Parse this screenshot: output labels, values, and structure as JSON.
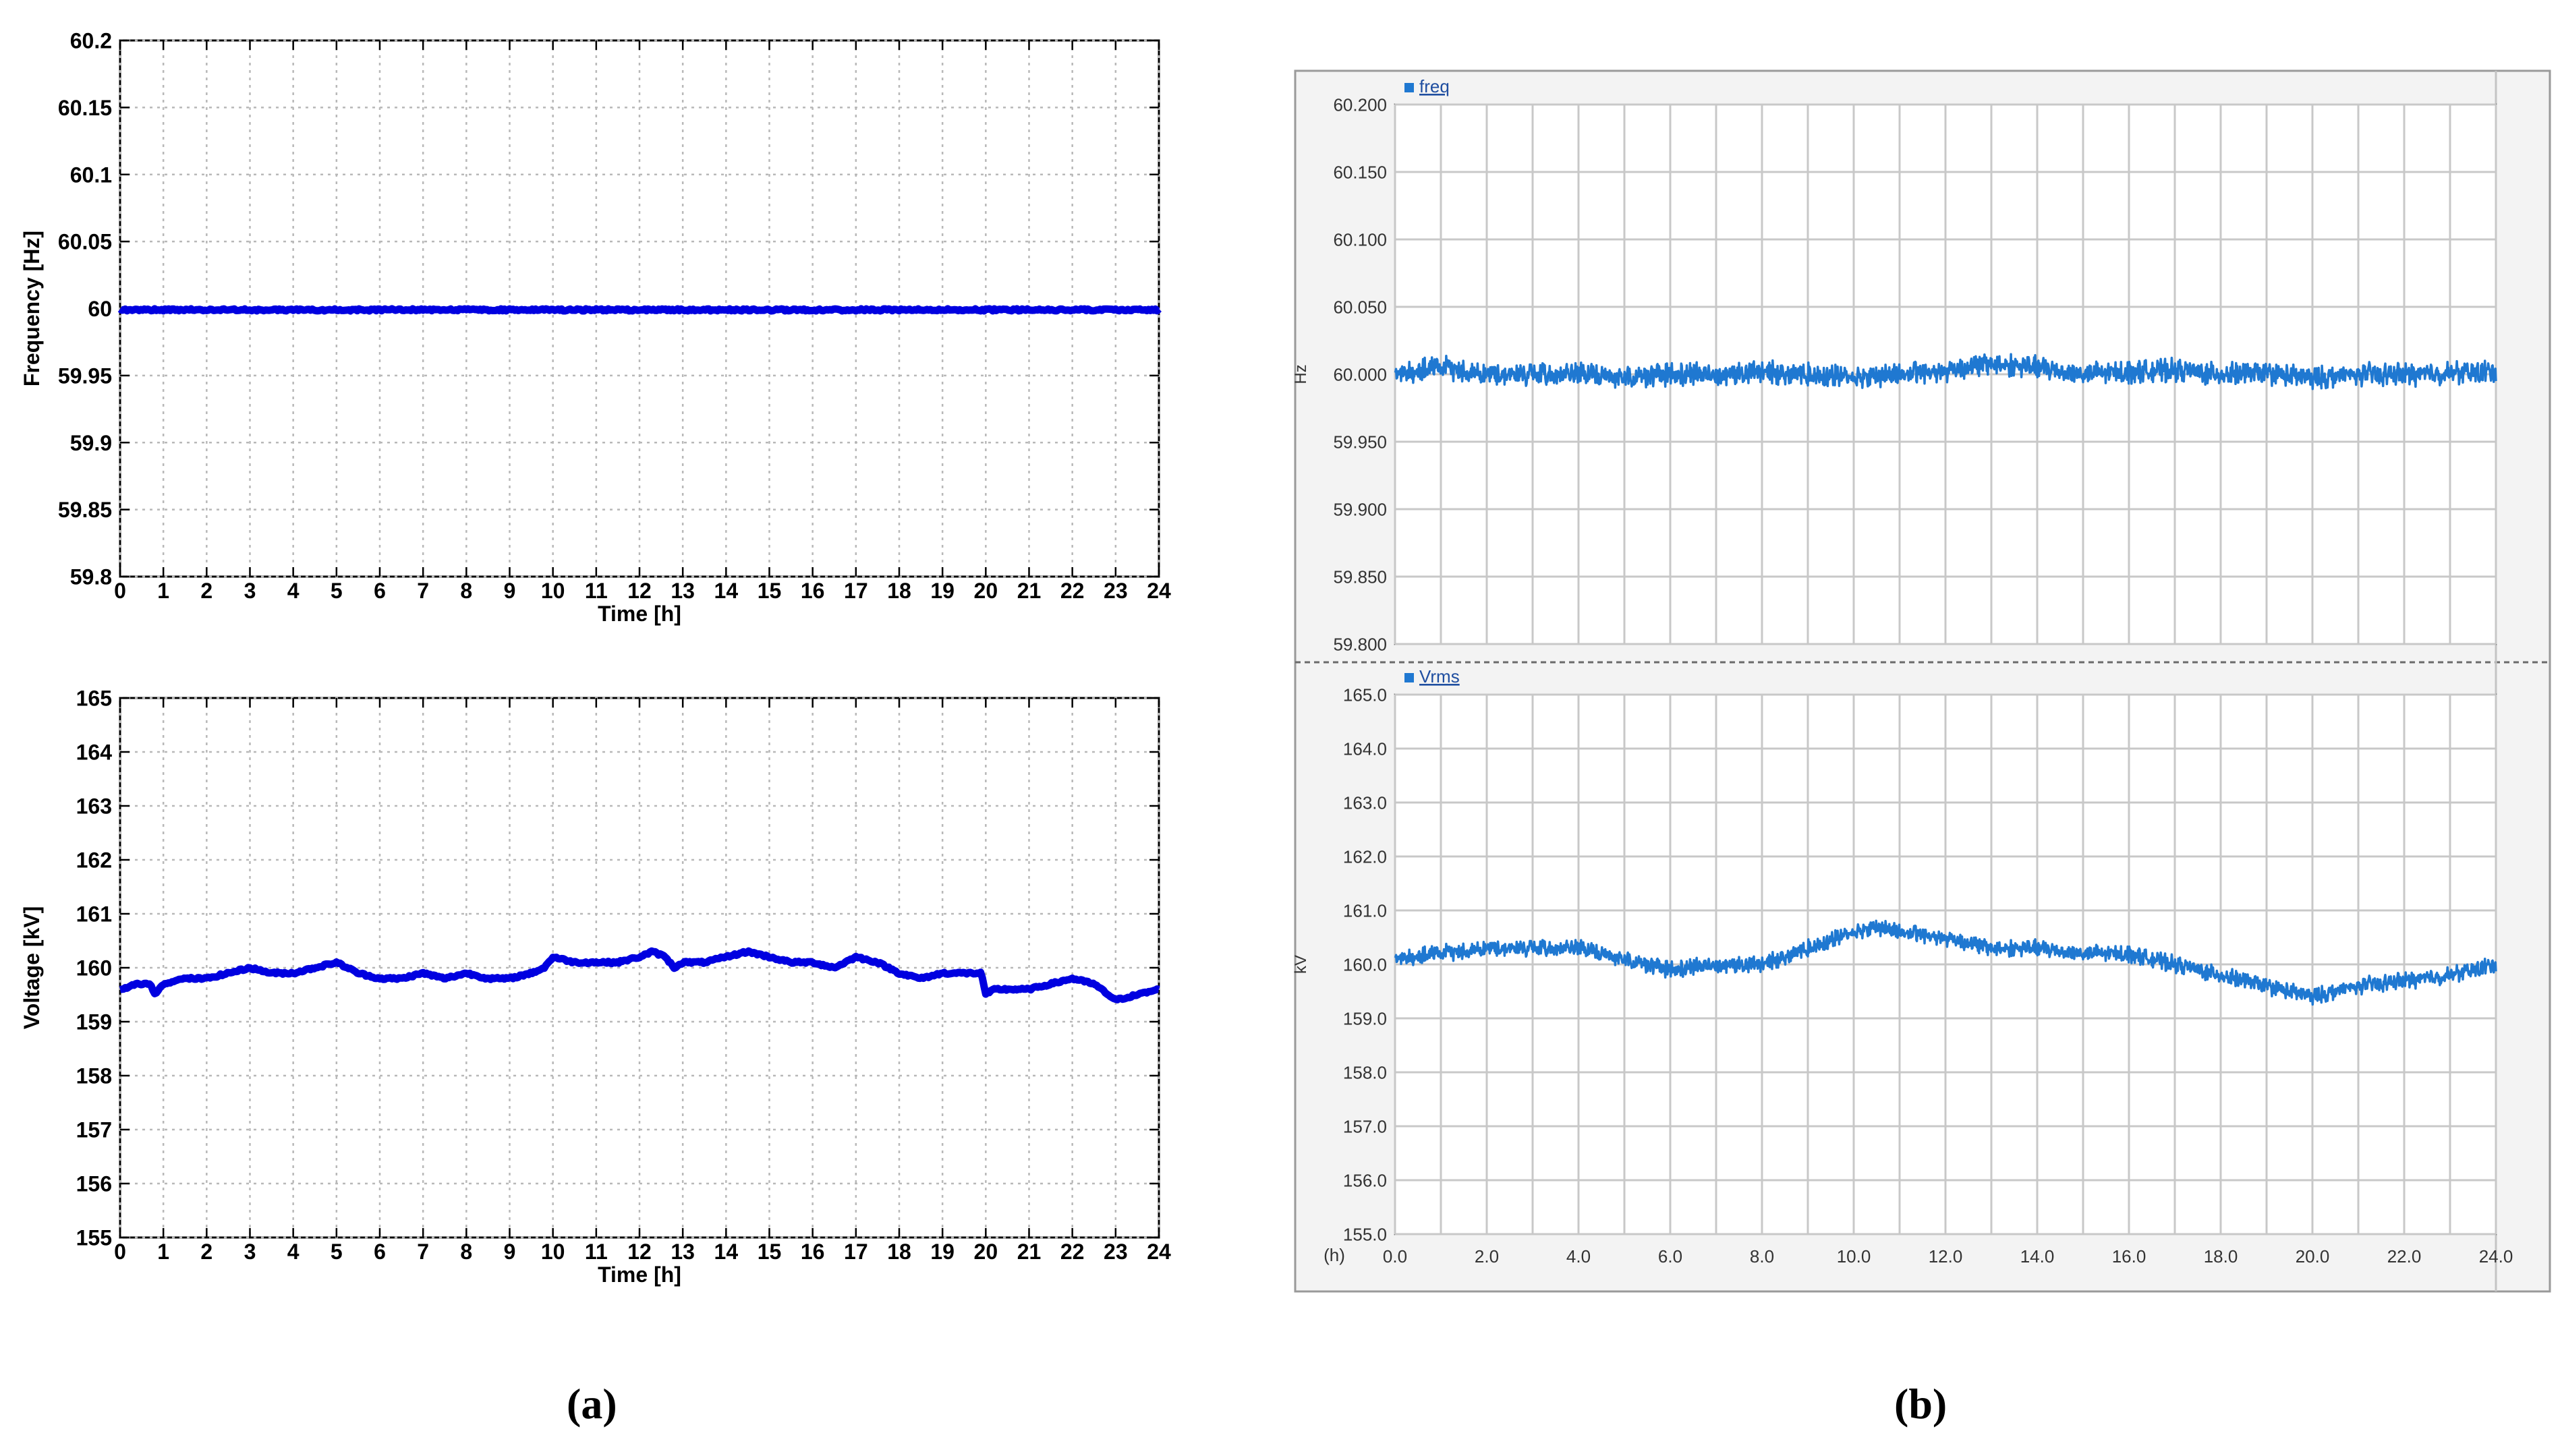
{
  "panels": {
    "a": {
      "label": "(a)"
    },
    "b": {
      "label": "(b)"
    }
  },
  "colors": {
    "matlab_line": "#0000e0",
    "scada_line": "#1f78d1",
    "grid_dotted": "#b8b8b8",
    "grid_solid": "#c8c8c8",
    "scada_frame": "#9a9a9a",
    "scada_background": "#f3f3f3",
    "legend_marker": "#1f78d1"
  },
  "chart_data": [
    {
      "id": "a-frequency",
      "type": "line",
      "style": "matlab",
      "xlabel": "Time [h]",
      "ylabel": "Frequency [Hz]",
      "xlim": [
        0,
        24
      ],
      "ylim": [
        59.8,
        60.2
      ],
      "x_ticks": [
        0,
        1,
        2,
        3,
        4,
        5,
        6,
        7,
        8,
        9,
        10,
        11,
        12,
        13,
        14,
        15,
        16,
        17,
        18,
        19,
        20,
        21,
        22,
        23,
        24
      ],
      "x_tick_labels": [
        "0",
        "1",
        "2",
        "3",
        "4",
        "5",
        "6",
        "7",
        "8",
        "9",
        "10",
        "11",
        "12",
        "13",
        "14",
        "15",
        "16",
        "17",
        "18",
        "19",
        "20",
        "21",
        "22",
        "23",
        "24"
      ],
      "y_ticks": [
        59.8,
        59.85,
        59.9,
        59.95,
        60,
        60.05,
        60.1,
        60.15,
        60.2
      ],
      "y_tick_labels": [
        "59.8",
        "59.85",
        "59.9",
        "59.95",
        "60",
        "60.05",
        "60.1",
        "60.15",
        "60.2"
      ],
      "grid": "dotted",
      "series": [
        {
          "x": [
            0,
            1,
            2,
            3,
            4,
            5,
            6,
            7,
            8,
            9,
            10,
            11,
            12,
            13,
            14,
            15,
            16,
            17,
            18,
            19,
            20,
            21,
            22,
            23,
            24
          ],
          "y": [
            59.999,
            59.999,
            59.999,
            59.999,
            59.999,
            59.999,
            59.999,
            59.999,
            59.999,
            59.999,
            59.999,
            59.999,
            59.999,
            59.999,
            59.999,
            59.999,
            59.999,
            59.999,
            59.999,
            59.999,
            59.999,
            59.999,
            59.999,
            59.999,
            59.999
          ]
        }
      ]
    },
    {
      "id": "a-voltage",
      "type": "line",
      "style": "matlab",
      "xlabel": "Time [h]",
      "ylabel": "Voltage [kV]",
      "xlim": [
        0,
        24
      ],
      "ylim": [
        155,
        165
      ],
      "x_ticks": [
        0,
        1,
        2,
        3,
        4,
        5,
        6,
        7,
        8,
        9,
        10,
        11,
        12,
        13,
        14,
        15,
        16,
        17,
        18,
        19,
        20,
        21,
        22,
        23,
        24
      ],
      "x_tick_labels": [
        "0",
        "1",
        "2",
        "3",
        "4",
        "5",
        "6",
        "7",
        "8",
        "9",
        "10",
        "11",
        "12",
        "13",
        "14",
        "15",
        "16",
        "17",
        "18",
        "19",
        "20",
        "21",
        "22",
        "23",
        "24"
      ],
      "y_ticks": [
        155,
        156,
        157,
        158,
        159,
        160,
        161,
        162,
        163,
        164,
        165
      ],
      "y_tick_labels": [
        "155",
        "156",
        "157",
        "158",
        "159",
        "160",
        "161",
        "162",
        "163",
        "164",
        "165"
      ],
      "grid": "dotted",
      "series": [
        {
          "x": [
            0,
            0.4,
            0.7,
            0.8,
            1,
            1.5,
            2,
            2.5,
            3,
            3.5,
            4,
            4.5,
            5,
            5.5,
            6,
            6.5,
            7,
            7.5,
            8,
            8.5,
            9,
            9.5,
            9.8,
            10,
            10.5,
            11,
            11.5,
            12,
            12.3,
            12.6,
            12.8,
            13,
            13.5,
            14,
            14.5,
            15,
            15.5,
            16,
            16.5,
            17,
            17.5,
            18,
            18.5,
            19,
            19.5,
            19.9,
            20,
            20.2,
            20.5,
            21,
            21.5,
            22,
            22.5,
            23,
            23.5,
            24
          ],
          "y": [
            159.6,
            159.7,
            159.7,
            159.5,
            159.7,
            159.8,
            159.8,
            159.9,
            160.0,
            159.9,
            159.9,
            160.0,
            160.1,
            159.9,
            159.8,
            159.8,
            159.9,
            159.8,
            159.9,
            159.8,
            159.8,
            159.9,
            160.0,
            160.2,
            160.1,
            160.1,
            160.1,
            160.2,
            160.3,
            160.2,
            160.0,
            160.1,
            160.1,
            160.2,
            160.3,
            160.2,
            160.1,
            160.1,
            160.0,
            160.2,
            160.1,
            159.9,
            159.8,
            159.9,
            159.9,
            159.9,
            159.5,
            159.6,
            159.6,
            159.6,
            159.7,
            159.8,
            159.7,
            159.4,
            159.5,
            159.6
          ]
        }
      ]
    },
    {
      "id": "b-freq",
      "type": "line",
      "style": "scada",
      "legend": "freq",
      "ylabel": "Hz",
      "xlim": [
        0,
        24
      ],
      "ylim": [
        59.8,
        60.2
      ],
      "y_ticks": [
        59.8,
        59.85,
        59.9,
        59.95,
        60.0,
        60.05,
        60.1,
        60.15,
        60.2
      ],
      "y_tick_labels": [
        "59.800",
        "59.850",
        "59.900",
        "59.950",
        "60.000",
        "60.050",
        "60.100",
        "60.150",
        "60.200"
      ],
      "x_grid_step": 1,
      "grid": "solid",
      "series": [
        {
          "name": "freq",
          "x": [
            0,
            1,
            2,
            3,
            4,
            5,
            6,
            7,
            8,
            9,
            10,
            11,
            12,
            13,
            14,
            15,
            16,
            17,
            18,
            19,
            20,
            21,
            22,
            23,
            24
          ],
          "y": [
            60.0,
            60.005,
            60.0,
            60.0,
            60.0,
            59.998,
            60.0,
            60.0,
            60.002,
            60.0,
            59.998,
            60.0,
            60.003,
            60.008,
            60.005,
            60.0,
            60.002,
            60.003,
            60.0,
            60.001,
            59.997,
            60.0,
            60.0,
            60.001,
            60.002
          ]
        }
      ]
    },
    {
      "id": "b-vrms",
      "type": "line",
      "style": "scada",
      "legend": "Vrms",
      "ylabel": "kV",
      "xlabel": "(h)",
      "xlim": [
        0,
        24
      ],
      "ylim": [
        155,
        165
      ],
      "x_ticks": [
        0,
        2,
        4,
        6,
        8,
        10,
        12,
        14,
        16,
        18,
        20,
        22,
        24
      ],
      "x_tick_labels": [
        "0.0",
        "2.0",
        "4.0",
        "6.0",
        "8.0",
        "10.0",
        "12.0",
        "14.0",
        "16.0",
        "18.0",
        "20.0",
        "22.0",
        "24.0"
      ],
      "y_ticks": [
        155,
        156,
        157,
        158,
        159,
        160,
        161,
        162,
        163,
        164,
        165
      ],
      "y_tick_labels": [
        "155.0",
        "156.0",
        "157.0",
        "158.0",
        "159.0",
        "160.0",
        "161.0",
        "162.0",
        "163.0",
        "164.0",
        "165.0"
      ],
      "x_grid_step": 1,
      "grid": "solid",
      "series": [
        {
          "name": "Vrms",
          "x": [
            0,
            1,
            2,
            3,
            4,
            5,
            6,
            7,
            8,
            9,
            10,
            10.5,
            11,
            12,
            13,
            14,
            15,
            16,
            17,
            18,
            18.5,
            19,
            19.5,
            20,
            20.5,
            21,
            22,
            23,
            24
          ],
          "y": [
            160.1,
            160.2,
            160.3,
            160.3,
            160.3,
            160.1,
            159.9,
            160.0,
            160.0,
            160.3,
            160.6,
            160.7,
            160.6,
            160.5,
            160.3,
            160.3,
            160.2,
            160.2,
            160.0,
            159.8,
            159.7,
            159.6,
            159.5,
            159.4,
            159.5,
            159.6,
            159.7,
            159.8,
            160.0
          ]
        }
      ]
    }
  ]
}
